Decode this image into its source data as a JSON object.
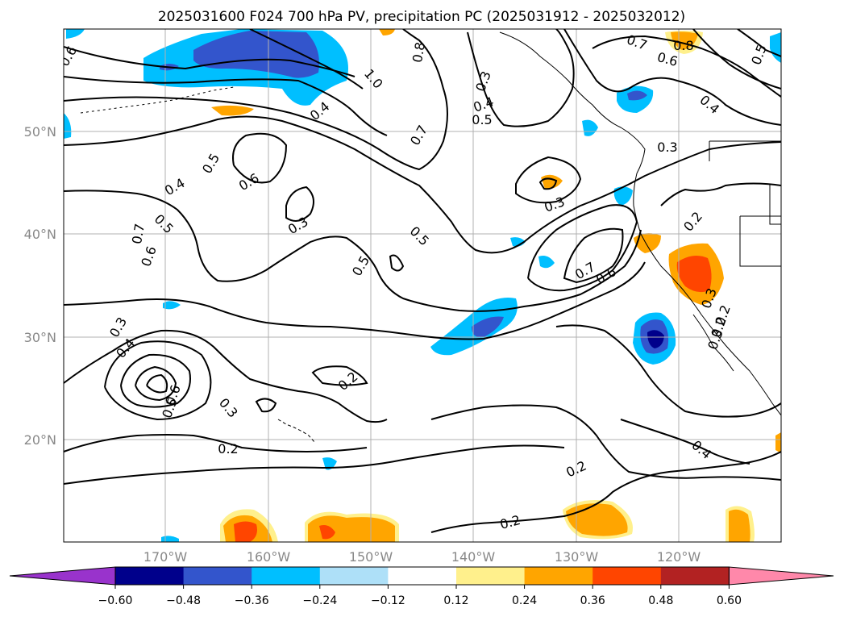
{
  "title": "2025031600 F024 700 hPa PV, precipitation PC (2025031912 - 2025032012)",
  "lat_labels": [
    "50°N",
    "40°N",
    "30°N",
    "20°N"
  ],
  "lon_labels": [
    "170°W",
    "160°W",
    "150°W",
    "140°W",
    "130°W",
    "120°W"
  ],
  "colorbar": {
    "ticks": [
      "−0.60",
      "−0.48",
      "−0.36",
      "−0.24",
      "−0.12",
      "0.12",
      "0.24",
      "0.36",
      "0.48",
      "0.60"
    ],
    "colors": [
      "#9933cc",
      "#00008b",
      "#3355cc",
      "#00bfff",
      "#aee0f8",
      "#ffffff",
      "#fff08c",
      "#ffa500",
      "#ff4500",
      "#b22222",
      "#ff88aa"
    ]
  },
  "contour_labels": [
    {
      "text": "0.6"
    },
    {
      "text": "1.0"
    },
    {
      "text": "0.8"
    },
    {
      "text": "0.8"
    },
    {
      "text": "0.7"
    },
    {
      "text": "0.6"
    },
    {
      "text": "0.5"
    },
    {
      "text": "0.4"
    },
    {
      "text": "0.3"
    },
    {
      "text": "0.4"
    },
    {
      "text": "0.5"
    },
    {
      "text": "0.7"
    },
    {
      "text": "0.4"
    },
    {
      "text": "0.5"
    },
    {
      "text": "0.6"
    },
    {
      "text": "0.4"
    },
    {
      "text": "0.5"
    },
    {
      "text": "0.7"
    },
    {
      "text": "0.6"
    },
    {
      "text": "0.3"
    },
    {
      "text": "0.5"
    },
    {
      "text": "0.5"
    },
    {
      "text": "0.3"
    },
    {
      "text": "0.3"
    },
    {
      "text": "0.7"
    },
    {
      "text": "0.6"
    },
    {
      "text": "0.2"
    },
    {
      "text": "0.3"
    },
    {
      "text": "0.3"
    },
    {
      "text": "0.4"
    },
    {
      "text": "0.6"
    },
    {
      "text": "0.5"
    },
    {
      "text": "0.3"
    },
    {
      "text": "0.2"
    },
    {
      "text": "0.2"
    },
    {
      "text": "0.4"
    },
    {
      "text": "0.2"
    },
    {
      "text": "0.2"
    },
    {
      "text": "0.2"
    },
    {
      "text": "0.3"
    },
    {
      "text": "0.2"
    }
  ]
}
